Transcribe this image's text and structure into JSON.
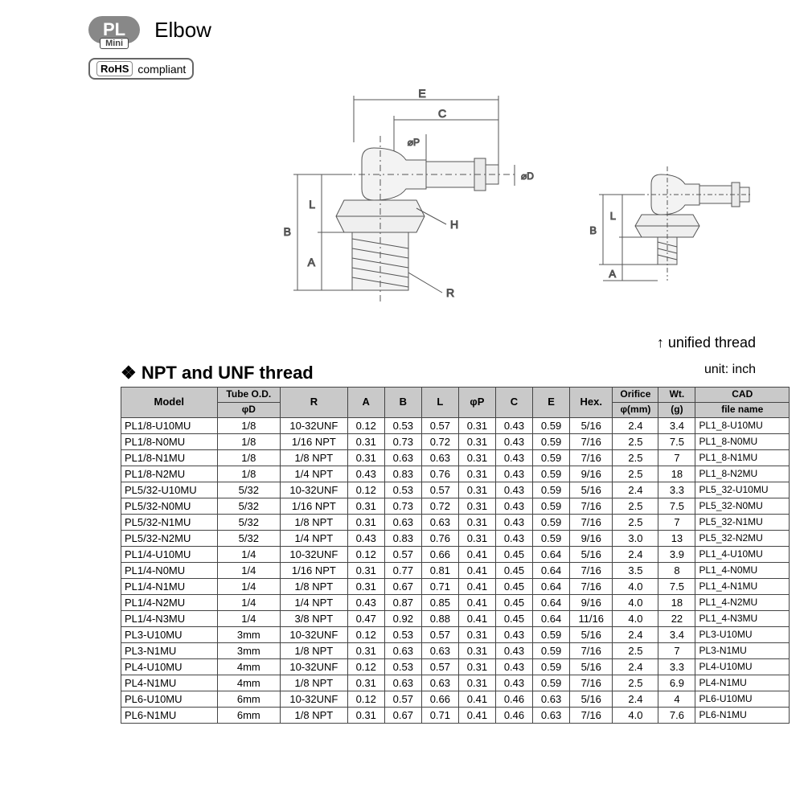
{
  "badge": {
    "main": "PL",
    "sub": "Mini"
  },
  "title": "Elbow",
  "rohs": {
    "label": "RoHS",
    "text": "compliant"
  },
  "unified_thread_label": "↑ unified thread",
  "section_title": "NPT and UNF thread",
  "unit_label": "unit: inch",
  "diagram_labels": {
    "E": "E",
    "C": "C",
    "phiP": "⌀P",
    "phiD": "⌀D",
    "L": "L",
    "B": "B",
    "A": "A",
    "H": "H",
    "R": "R"
  },
  "table": {
    "header1": [
      "Model",
      "Tube O.D.",
      "R",
      "A",
      "B",
      "L",
      "φP",
      "C",
      "E",
      "Hex.",
      "Orifice",
      "Wt.",
      "CAD"
    ],
    "header2": [
      "",
      "φD",
      "",
      "",
      "",
      "",
      "",
      "",
      "",
      "",
      "φ(mm)",
      "(g)",
      "file name"
    ],
    "rows": [
      [
        "PL1/8-U10MU",
        "1/8",
        "10-32UNF",
        "0.12",
        "0.53",
        "0.57",
        "0.31",
        "0.43",
        "0.59",
        "5/16",
        "2.4",
        "3.4",
        "PL1_8-U10MU"
      ],
      [
        "PL1/8-N0MU",
        "1/8",
        "1/16 NPT",
        "0.31",
        "0.73",
        "0.72",
        "0.31",
        "0.43",
        "0.59",
        "7/16",
        "2.5",
        "7.5",
        "PL1_8-N0MU"
      ],
      [
        "PL1/8-N1MU",
        "1/8",
        "1/8 NPT",
        "0.31",
        "0.63",
        "0.63",
        "0.31",
        "0.43",
        "0.59",
        "7/16",
        "2.5",
        "7",
        "PL1_8-N1MU"
      ],
      [
        "PL1/8-N2MU",
        "1/8",
        "1/4 NPT",
        "0.43",
        "0.83",
        "0.76",
        "0.31",
        "0.43",
        "0.59",
        "9/16",
        "2.5",
        "18",
        "PL1_8-N2MU"
      ],
      [
        "PL5/32-U10MU",
        "5/32",
        "10-32UNF",
        "0.12",
        "0.53",
        "0.57",
        "0.31",
        "0.43",
        "0.59",
        "5/16",
        "2.4",
        "3.3",
        "PL5_32-U10MU"
      ],
      [
        "PL5/32-N0MU",
        "5/32",
        "1/16 NPT",
        "0.31",
        "0.73",
        "0.72",
        "0.31",
        "0.43",
        "0.59",
        "7/16",
        "2.5",
        "7.5",
        "PL5_32-N0MU"
      ],
      [
        "PL5/32-N1MU",
        "5/32",
        "1/8 NPT",
        "0.31",
        "0.63",
        "0.63",
        "0.31",
        "0.43",
        "0.59",
        "7/16",
        "2.5",
        "7",
        "PL5_32-N1MU"
      ],
      [
        "PL5/32-N2MU",
        "5/32",
        "1/4 NPT",
        "0.43",
        "0.83",
        "0.76",
        "0.31",
        "0.43",
        "0.59",
        "9/16",
        "3.0",
        "13",
        "PL5_32-N2MU"
      ],
      [
        "PL1/4-U10MU",
        "1/4",
        "10-32UNF",
        "0.12",
        "0.57",
        "0.66",
        "0.41",
        "0.45",
        "0.64",
        "5/16",
        "2.4",
        "3.9",
        "PL1_4-U10MU"
      ],
      [
        "PL1/4-N0MU",
        "1/4",
        "1/16 NPT",
        "0.31",
        "0.77",
        "0.81",
        "0.41",
        "0.45",
        "0.64",
        "7/16",
        "3.5",
        "8",
        "PL1_4-N0MU"
      ],
      [
        "PL1/4-N1MU",
        "1/4",
        "1/8 NPT",
        "0.31",
        "0.67",
        "0.71",
        "0.41",
        "0.45",
        "0.64",
        "7/16",
        "4.0",
        "7.5",
        "PL1_4-N1MU"
      ],
      [
        "PL1/4-N2MU",
        "1/4",
        "1/4 NPT",
        "0.43",
        "0.87",
        "0.85",
        "0.41",
        "0.45",
        "0.64",
        "9/16",
        "4.0",
        "18",
        "PL1_4-N2MU"
      ],
      [
        "PL1/4-N3MU",
        "1/4",
        "3/8 NPT",
        "0.47",
        "0.92",
        "0.88",
        "0.41",
        "0.45",
        "0.64",
        "11/16",
        "4.0",
        "22",
        "PL1_4-N3MU"
      ],
      [
        "PL3-U10MU",
        "3mm",
        "10-32UNF",
        "0.12",
        "0.53",
        "0.57",
        "0.31",
        "0.43",
        "0.59",
        "5/16",
        "2.4",
        "3.4",
        "PL3-U10MU"
      ],
      [
        "PL3-N1MU",
        "3mm",
        "1/8 NPT",
        "0.31",
        "0.63",
        "0.63",
        "0.31",
        "0.43",
        "0.59",
        "7/16",
        "2.5",
        "7",
        "PL3-N1MU"
      ],
      [
        "PL4-U10MU",
        "4mm",
        "10-32UNF",
        "0.12",
        "0.53",
        "0.57",
        "0.31",
        "0.43",
        "0.59",
        "5/16",
        "2.4",
        "3.3",
        "PL4-U10MU"
      ],
      [
        "PL4-N1MU",
        "4mm",
        "1/8 NPT",
        "0.31",
        "0.63",
        "0.63",
        "0.31",
        "0.43",
        "0.59",
        "7/16",
        "2.5",
        "6.9",
        "PL4-N1MU"
      ],
      [
        "PL6-U10MU",
        "6mm",
        "10-32UNF",
        "0.12",
        "0.57",
        "0.66",
        "0.41",
        "0.46",
        "0.63",
        "5/16",
        "2.4",
        "4",
        "PL6-U10MU"
      ],
      [
        "PL6-N1MU",
        "6mm",
        "1/8 NPT",
        "0.31",
        "0.67",
        "0.71",
        "0.41",
        "0.46",
        "0.63",
        "7/16",
        "4.0",
        "7.6",
        "PL6-N1MU"
      ]
    ]
  }
}
